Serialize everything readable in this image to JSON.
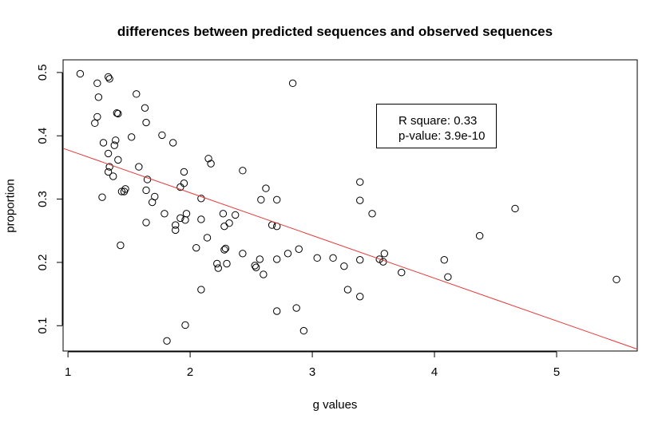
{
  "chart_data": {
    "type": "scatter",
    "title": "differences between predicted sequences and observed sequences",
    "xlabel": "g values",
    "ylabel": "proportion",
    "xlim": [
      0.96,
      5.66
    ],
    "ylim": [
      0.06,
      0.52
    ],
    "x_ticks": [
      1,
      2,
      3,
      4,
      5
    ],
    "y_ticks": [
      0.1,
      0.2,
      0.3,
      0.4,
      0.5
    ],
    "grid": false,
    "legend_position": "top-right",
    "legend": {
      "r_square": "R square: 0.33",
      "p_value": "p-value: 3.9e-10"
    },
    "regression_line": {
      "color": "#e8393a",
      "intercept": 0.445,
      "slope": -0.0675
    },
    "points": [
      [
        1.1,
        0.498
      ],
      [
        1.24,
        0.483
      ],
      [
        1.33,
        0.493
      ],
      [
        1.34,
        0.49
      ],
      [
        1.25,
        0.461
      ],
      [
        1.56,
        0.466
      ],
      [
        1.63,
        0.444
      ],
      [
        1.4,
        0.436
      ],
      [
        1.41,
        0.435
      ],
      [
        1.24,
        0.43
      ],
      [
        1.22,
        0.42
      ],
      [
        1.64,
        0.421
      ],
      [
        1.77,
        0.401
      ],
      [
        1.52,
        0.398
      ],
      [
        1.86,
        0.389
      ],
      [
        1.39,
        0.393
      ],
      [
        1.29,
        0.389
      ],
      [
        1.38,
        0.385
      ],
      [
        1.33,
        0.372
      ],
      [
        1.41,
        0.362
      ],
      [
        1.37,
        0.336
      ],
      [
        1.33,
        0.343
      ],
      [
        1.34,
        0.351
      ],
      [
        1.58,
        0.351
      ],
      [
        1.65,
        0.331
      ],
      [
        1.95,
        0.343
      ],
      [
        2.15,
        0.364
      ],
      [
        2.17,
        0.356
      ],
      [
        1.95,
        0.325
      ],
      [
        1.92,
        0.319
      ],
      [
        1.44,
        0.312
      ],
      [
        1.47,
        0.316
      ],
      [
        1.46,
        0.312
      ],
      [
        1.64,
        0.314
      ],
      [
        1.71,
        0.304
      ],
      [
        1.69,
        0.295
      ],
      [
        1.28,
        0.303
      ],
      [
        2.09,
        0.301
      ],
      [
        2.43,
        0.345
      ],
      [
        2.62,
        0.317
      ],
      [
        2.58,
        0.299
      ],
      [
        2.71,
        0.299
      ],
      [
        1.79,
        0.277
      ],
      [
        1.97,
        0.277
      ],
      [
        1.92,
        0.27
      ],
      [
        1.96,
        0.267
      ],
      [
        2.09,
        0.268
      ],
      [
        2.27,
        0.277
      ],
      [
        2.37,
        0.275
      ],
      [
        2.32,
        0.262
      ],
      [
        2.28,
        0.257
      ],
      [
        1.64,
        0.263
      ],
      [
        1.88,
        0.259
      ],
      [
        1.88,
        0.251
      ],
      [
        2.14,
        0.239
      ],
      [
        2.05,
        0.223
      ],
      [
        2.29,
        0.222
      ],
      [
        2.28,
        0.22
      ],
      [
        2.43,
        0.214
      ],
      [
        2.67,
        0.259
      ],
      [
        2.71,
        0.257
      ],
      [
        3.39,
        0.327
      ],
      [
        3.39,
        0.298
      ],
      [
        3.49,
        0.277
      ],
      [
        4.66,
        0.285
      ],
      [
        4.37,
        0.242
      ],
      [
        1.43,
        0.227
      ],
      [
        2.22,
        0.198
      ],
      [
        2.3,
        0.198
      ],
      [
        2.23,
        0.191
      ],
      [
        2.53,
        0.195
      ],
      [
        2.54,
        0.192
      ],
      [
        2.57,
        0.205
      ],
      [
        2.71,
        0.205
      ],
      [
        2.8,
        0.214
      ],
      [
        2.89,
        0.221
      ],
      [
        2.6,
        0.181
      ],
      [
        3.04,
        0.207
      ],
      [
        3.17,
        0.207
      ],
      [
        3.26,
        0.194
      ],
      [
        3.39,
        0.204
      ],
      [
        3.55,
        0.205
      ],
      [
        3.58,
        0.201
      ],
      [
        3.59,
        0.214
      ],
      [
        3.73,
        0.184
      ],
      [
        4.08,
        0.204
      ],
      [
        4.11,
        0.177
      ],
      [
        5.49,
        0.173
      ],
      [
        2.84,
        0.483
      ],
      [
        2.09,
        0.157
      ],
      [
        3.29,
        0.157
      ],
      [
        3.39,
        0.146
      ],
      [
        2.71,
        0.123
      ],
      [
        2.87,
        0.128
      ],
      [
        1.96,
        0.101
      ],
      [
        2.93,
        0.092
      ],
      [
        1.81,
        0.076
      ]
    ]
  }
}
